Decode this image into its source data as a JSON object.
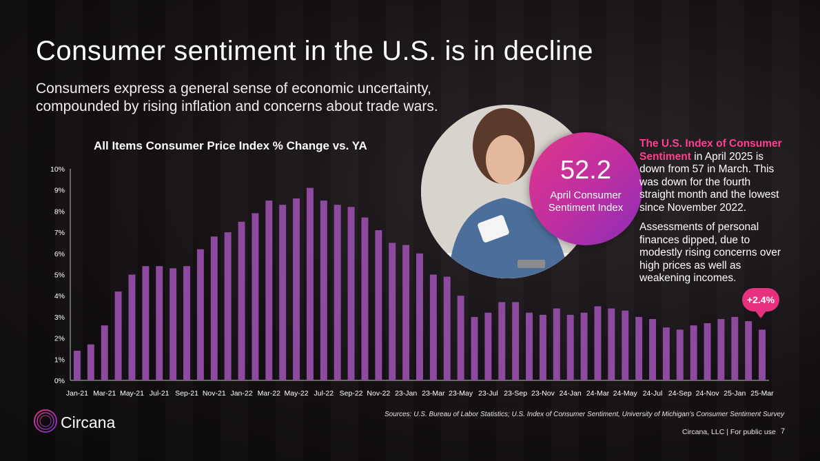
{
  "header": {
    "title": "Consumer sentiment in the U.S. is in decline",
    "subtitle": "Consumers express a general sense of economic uncertainty, compounded by rising inflation and concerns about trade wars."
  },
  "badge": {
    "value": "52.2",
    "label": "April Consumer Sentiment Index"
  },
  "side_text": {
    "p1_highlight": "The U.S. Index of Consumer Sentiment",
    "p1_rest": " in April 2025 is down from 57 in March. This was down for the fourth straight month and the lowest since November 2022.",
    "p2": "Assessments of personal finances dipped, due to modestly rising concerns over high prices as well as weakening incomes."
  },
  "callout": "+2.4%",
  "sources": "Sources: U.S. Bureau of Labor Statistics; U.S. Index of Consumer Sentiment, University of Michigan’s Consumer Sentiment Survey",
  "footer": {
    "company": "Circana, LLC | For public use",
    "page": "7",
    "logo_text": "Circana"
  },
  "colors": {
    "bar": "#8e4a9f",
    "accent": "#e8317e",
    "highlight": "#ff3f90"
  },
  "chart_data": {
    "type": "bar",
    "title": "All Items Consumer Price Index % Change vs. YA",
    "xlabel": "",
    "ylabel": "",
    "ylim": [
      0,
      10
    ],
    "yticks": [
      "0%",
      "1%",
      "2%",
      "3%",
      "4%",
      "5%",
      "6%",
      "7%",
      "8%",
      "9%",
      "10%"
    ],
    "tick_labels": [
      "Jan-21",
      "Mar-21",
      "May-21",
      "Jul-21",
      "Sep-21",
      "Nov-21",
      "Jan-22",
      "Mar-22",
      "May-22",
      "Jul-22",
      "Sep-22",
      "Nov-22",
      "23-Jan",
      "23-Mar",
      "23-May",
      "23-Jul",
      "23-Sep",
      "23-Nov",
      "24-Jan",
      "24-Mar",
      "24-May",
      "24-Jul",
      "24-Sep",
      "24-Nov",
      "25-Jan",
      "25-Mar"
    ],
    "categories": [
      "Jan-21",
      "Feb-21",
      "Mar-21",
      "Apr-21",
      "May-21",
      "Jun-21",
      "Jul-21",
      "Aug-21",
      "Sep-21",
      "Oct-21",
      "Nov-21",
      "Dec-21",
      "Jan-22",
      "Feb-22",
      "Mar-22",
      "Apr-22",
      "May-22",
      "Jun-22",
      "Jul-22",
      "Aug-22",
      "Sep-22",
      "Oct-22",
      "Nov-22",
      "Dec-22",
      "23-Jan",
      "23-Feb",
      "23-Mar",
      "23-Apr",
      "23-May",
      "23-Jun",
      "23-Jul",
      "23-Aug",
      "23-Sep",
      "23-Oct",
      "23-Nov",
      "23-Dec",
      "24-Jan",
      "24-Feb",
      "24-Mar",
      "24-Apr",
      "24-May",
      "24-Jun",
      "24-Jul",
      "24-Aug",
      "24-Sep",
      "24-Oct",
      "24-Nov",
      "24-Dec",
      "25-Jan",
      "25-Feb",
      "25-Mar"
    ],
    "values": [
      1.4,
      1.7,
      2.6,
      4.2,
      5.0,
      5.4,
      5.4,
      5.3,
      5.4,
      6.2,
      6.8,
      7.0,
      7.5,
      7.9,
      8.5,
      8.3,
      8.6,
      9.1,
      8.5,
      8.3,
      8.2,
      7.7,
      7.1,
      6.5,
      6.4,
      6.0,
      5.0,
      4.9,
      4.0,
      3.0,
      3.2,
      3.7,
      3.7,
      3.2,
      3.1,
      3.4,
      3.1,
      3.2,
      3.5,
      3.4,
      3.3,
      3.0,
      2.9,
      2.5,
      2.4,
      2.6,
      2.7,
      2.9,
      3.0,
      2.8,
      2.4
    ],
    "grid": false,
    "legend": "none"
  }
}
